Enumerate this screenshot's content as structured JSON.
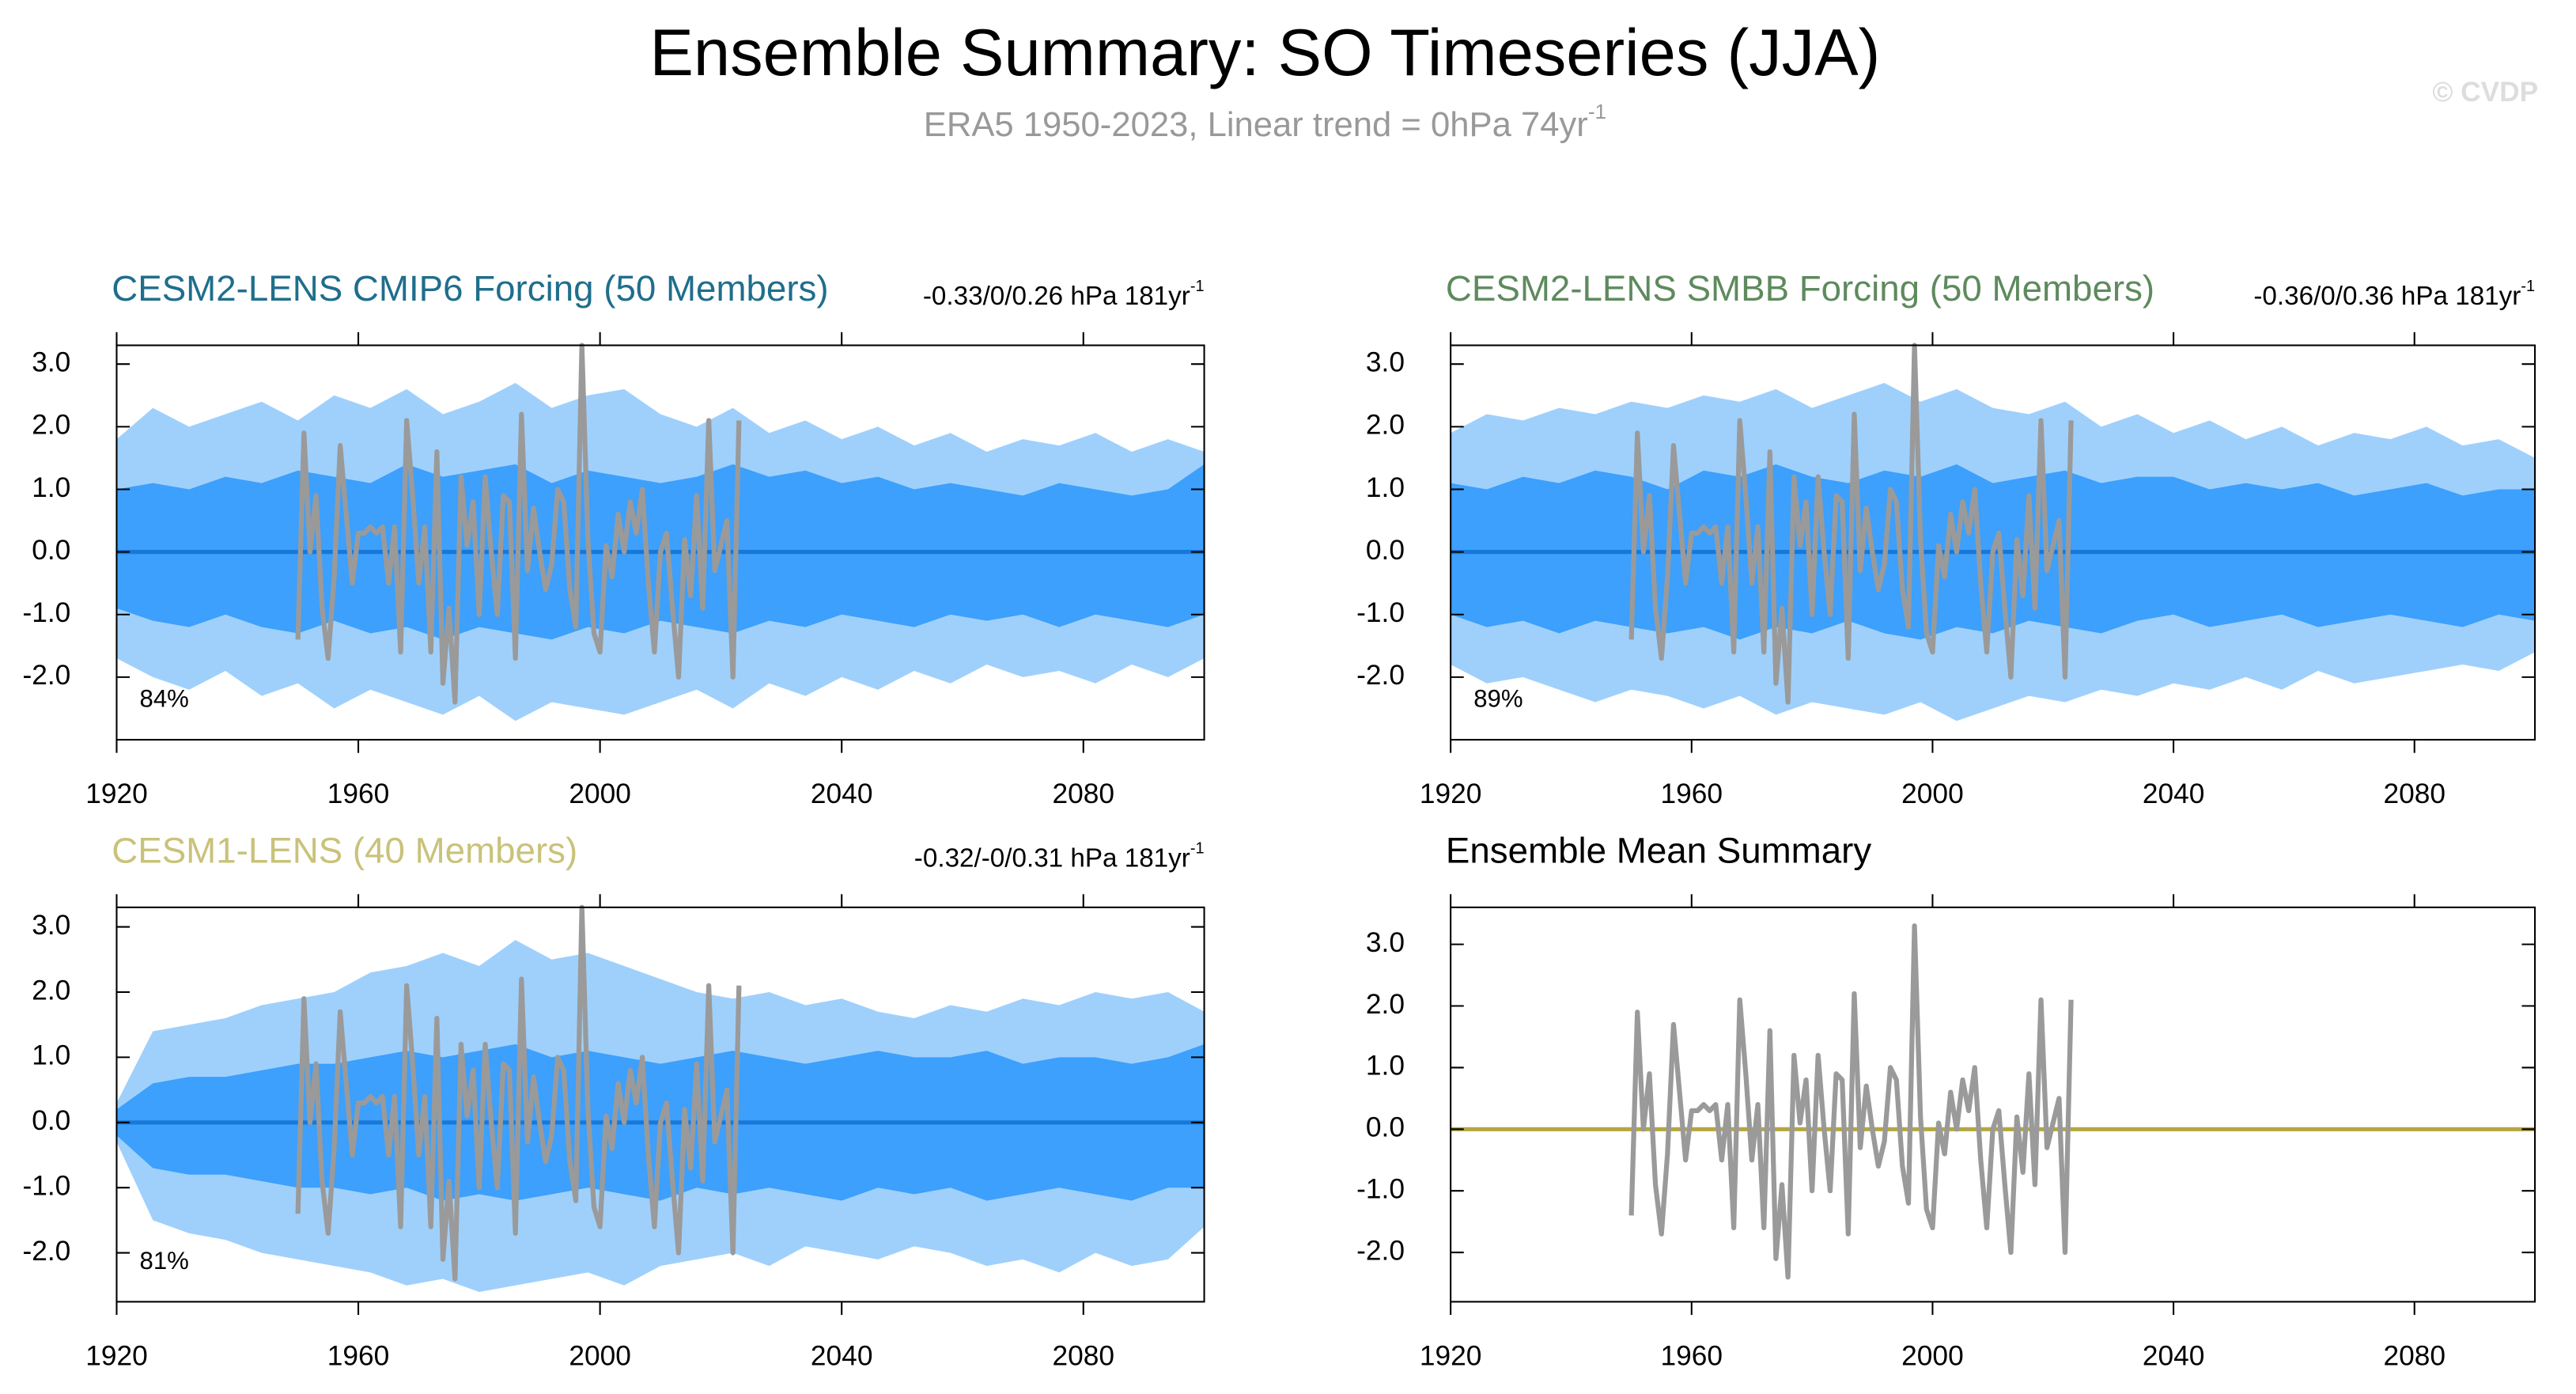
{
  "title": "Ensemble Summary: SO Timeseries (JJA)",
  "subtitle": "ERA5 1950-2023, Linear trend = 0hPa 74yr",
  "subtitle_sup": "-1",
  "watermark": "© CVDP",
  "observed": {
    "color": "#9a9a9a",
    "x": [
      1950,
      1951,
      1952,
      1953,
      1954,
      1955,
      1956,
      1957,
      1958,
      1959,
      1960,
      1961,
      1962,
      1963,
      1964,
      1965,
      1966,
      1967,
      1968,
      1969,
      1970,
      1971,
      1972,
      1973,
      1974,
      1975,
      1976,
      1977,
      1978,
      1979,
      1980,
      1981,
      1982,
      1983,
      1984,
      1985,
      1986,
      1987,
      1988,
      1989,
      1990,
      1991,
      1992,
      1993,
      1994,
      1995,
      1996,
      1997,
      1998,
      1999,
      2000,
      2001,
      2002,
      2003,
      2004,
      2005,
      2006,
      2007,
      2008,
      2009,
      2010,
      2011,
      2012,
      2013,
      2014,
      2015,
      2016,
      2017,
      2018,
      2019,
      2020,
      2021,
      2022,
      2023
    ],
    "values": [
      -1.4,
      1.9,
      0.0,
      0.9,
      -0.9,
      -1.7,
      -0.4,
      1.7,
      0.6,
      -0.5,
      0.3,
      0.3,
      0.4,
      0.3,
      0.4,
      -0.5,
      0.4,
      -1.6,
      2.1,
      0.9,
      -0.5,
      0.4,
      -1.6,
      1.6,
      -2.1,
      -0.9,
      -2.4,
      1.2,
      0.1,
      0.8,
      -1.0,
      1.2,
      0.0,
      -1.0,
      0.9,
      0.8,
      -1.7,
      2.2,
      -0.3,
      0.7,
      0.0,
      -0.6,
      -0.2,
      1.0,
      0.8,
      -0.6,
      -1.2,
      3.3,
      0.2,
      -1.3,
      -1.6,
      0.1,
      -0.4,
      0.6,
      0.0,
      0.8,
      0.3,
      1.0,
      -0.5,
      -1.6,
      0.0,
      0.3,
      -0.9,
      -2.0,
      0.2,
      -0.7,
      0.9,
      -0.9,
      2.1,
      -0.3,
      0.1,
      0.5,
      -2.0,
      2.1
    ]
  },
  "chart_data": [
    {
      "type": "band",
      "title": "CESM2-LENS CMIP6 Forcing (50 Members)",
      "title_color": "#1f6e8c",
      "trend_label": "-0.33/0/0.26 hPa 181yr",
      "trend_label_sup": "-1",
      "annotation": "84%",
      "xlim": [
        1920,
        2100
      ],
      "ylim": [
        -3,
        3.3
      ],
      "xticks": [
        1920,
        1960,
        2000,
        2040,
        2080
      ],
      "yticks": [
        {
          "value": -2,
          "label": "-2.0"
        },
        {
          "value": -1,
          "label": "-1.0"
        },
        {
          "value": 0,
          "label": "0.0"
        },
        {
          "value": 1,
          "label": "1.0"
        },
        {
          "value": 2,
          "label": "2.0"
        },
        {
          "value": 3,
          "label": "3.0"
        }
      ],
      "x": [
        1920,
        1926,
        1932,
        1938,
        1944,
        1950,
        1956,
        1962,
        1968,
        1974,
        1980,
        1986,
        1992,
        1998,
        2004,
        2010,
        2016,
        2022,
        2028,
        2034,
        2040,
        2046,
        2052,
        2058,
        2064,
        2070,
        2076,
        2082,
        2088,
        2094,
        2100
      ],
      "bands": [
        {
          "color": "#9fd0fc",
          "upper": [
            1.8,
            2.3,
            2.0,
            2.2,
            2.4,
            2.1,
            2.5,
            2.3,
            2.6,
            2.2,
            2.4,
            2.7,
            2.3,
            2.5,
            2.6,
            2.2,
            2.0,
            2.3,
            1.9,
            2.1,
            1.8,
            2.0,
            1.7,
            1.9,
            1.6,
            1.8,
            1.7,
            1.9,
            1.6,
            1.8,
            1.6
          ],
          "lower": [
            -1.7,
            -2.0,
            -2.2,
            -1.9,
            -2.3,
            -2.1,
            -2.5,
            -2.2,
            -2.4,
            -2.6,
            -2.3,
            -2.7,
            -2.4,
            -2.5,
            -2.6,
            -2.4,
            -2.2,
            -2.5,
            -2.1,
            -2.3,
            -2.0,
            -2.2,
            -1.9,
            -2.1,
            -1.8,
            -2.0,
            -1.9,
            -2.1,
            -1.8,
            -2.0,
            -1.7
          ]
        },
        {
          "color": "#3ca0fc",
          "upper": [
            1.0,
            1.1,
            1.0,
            1.2,
            1.1,
            1.3,
            1.2,
            1.1,
            1.4,
            1.2,
            1.3,
            1.4,
            1.1,
            1.3,
            1.2,
            1.1,
            1.2,
            1.4,
            1.2,
            1.3,
            1.1,
            1.2,
            1.0,
            1.1,
            1.0,
            0.9,
            1.1,
            1.0,
            0.9,
            1.0,
            1.4
          ],
          "lower": [
            -0.9,
            -1.1,
            -1.2,
            -1.0,
            -1.2,
            -1.3,
            -1.1,
            -1.3,
            -1.2,
            -1.4,
            -1.2,
            -1.3,
            -1.4,
            -1.2,
            -1.3,
            -1.1,
            -1.2,
            -1.3,
            -1.1,
            -1.2,
            -1.0,
            -1.1,
            -1.2,
            -1.0,
            -1.1,
            -1.0,
            -1.2,
            -1.0,
            -1.1,
            -1.2,
            -1.0
          ]
        }
      ],
      "lines": [
        {
          "color": "#1878d8",
          "x": [
            1920,
            2100
          ],
          "values": [
            0,
            0
          ]
        }
      ]
    },
    {
      "type": "band",
      "title": "CESM2-LENS SMBB Forcing (50 Members)",
      "title_color": "#5e8a5e",
      "trend_label": "-0.36/0/0.36 hPa 181yr",
      "trend_label_sup": "-1",
      "annotation": "89%",
      "xlim": [
        1920,
        2100
      ],
      "ylim": [
        -3,
        3.3
      ],
      "xticks": [
        1920,
        1960,
        2000,
        2040,
        2080
      ],
      "yticks": [
        {
          "value": -2,
          "label": "-2.0"
        },
        {
          "value": -1,
          "label": "-1.0"
        },
        {
          "value": 0,
          "label": "0.0"
        },
        {
          "value": 1,
          "label": "1.0"
        },
        {
          "value": 2,
          "label": "2.0"
        },
        {
          "value": 3,
          "label": "3.0"
        }
      ],
      "x": [
        1920,
        1926,
        1932,
        1938,
        1944,
        1950,
        1956,
        1962,
        1968,
        1974,
        1980,
        1986,
        1992,
        1998,
        2004,
        2010,
        2016,
        2022,
        2028,
        2034,
        2040,
        2046,
        2052,
        2058,
        2064,
        2070,
        2076,
        2082,
        2088,
        2094,
        2100
      ],
      "bands": [
        {
          "color": "#9fd0fc",
          "upper": [
            1.9,
            2.2,
            2.1,
            2.3,
            2.2,
            2.4,
            2.3,
            2.5,
            2.4,
            2.6,
            2.3,
            2.5,
            2.7,
            2.4,
            2.6,
            2.3,
            2.2,
            2.4,
            2.0,
            2.2,
            1.9,
            2.1,
            1.8,
            2.0,
            1.7,
            1.9,
            1.8,
            2.0,
            1.7,
            1.8,
            1.5
          ],
          "lower": [
            -1.8,
            -2.1,
            -2.0,
            -2.2,
            -2.4,
            -2.2,
            -2.3,
            -2.5,
            -2.3,
            -2.6,
            -2.4,
            -2.5,
            -2.6,
            -2.4,
            -2.7,
            -2.5,
            -2.3,
            -2.4,
            -2.2,
            -2.3,
            -2.1,
            -2.2,
            -2.0,
            -2.2,
            -1.9,
            -2.1,
            -2.0,
            -1.9,
            -1.8,
            -1.9,
            -1.6
          ]
        },
        {
          "color": "#3ca0fc",
          "upper": [
            1.1,
            1.0,
            1.2,
            1.1,
            1.3,
            1.2,
            1.0,
            1.3,
            1.2,
            1.4,
            1.2,
            1.1,
            1.3,
            1.2,
            1.4,
            1.1,
            1.2,
            1.3,
            1.1,
            1.2,
            1.2,
            1.0,
            1.1,
            1.0,
            1.1,
            0.9,
            1.0,
            1.1,
            0.9,
            1.0,
            1.0
          ],
          "lower": [
            -1.0,
            -1.2,
            -1.1,
            -1.3,
            -1.1,
            -1.2,
            -1.3,
            -1.2,
            -1.4,
            -1.2,
            -1.3,
            -1.1,
            -1.3,
            -1.4,
            -1.2,
            -1.3,
            -1.1,
            -1.2,
            -1.3,
            -1.1,
            -1.0,
            -1.2,
            -1.1,
            -1.0,
            -1.2,
            -1.1,
            -1.0,
            -1.1,
            -1.2,
            -1.0,
            -1.1
          ]
        }
      ],
      "lines": [
        {
          "color": "#1878d8",
          "x": [
            1920,
            2100
          ],
          "values": [
            0,
            0
          ]
        }
      ]
    },
    {
      "type": "band",
      "title": "CESM1-LENS (40 Members)",
      "title_color": "#c9c27a",
      "trend_label": "-0.32/-0/0.31 hPa 181yr",
      "trend_label_sup": "-1",
      "annotation": "81%",
      "xlim": [
        1920,
        2100
      ],
      "ylim": [
        -2.75,
        3.3
      ],
      "xticks": [
        1920,
        1960,
        2000,
        2040,
        2080
      ],
      "yticks": [
        {
          "value": -2,
          "label": "-2.0"
        },
        {
          "value": -1,
          "label": "-1.0"
        },
        {
          "value": 0,
          "label": "0.0"
        },
        {
          "value": 1,
          "label": "1.0"
        },
        {
          "value": 2,
          "label": "2.0"
        },
        {
          "value": 3,
          "label": "3.0"
        }
      ],
      "x": [
        1920,
        1926,
        1932,
        1938,
        1944,
        1950,
        1956,
        1962,
        1968,
        1974,
        1980,
        1986,
        1992,
        1998,
        2004,
        2010,
        2016,
        2022,
        2028,
        2034,
        2040,
        2046,
        2052,
        2058,
        2064,
        2070,
        2076,
        2082,
        2088,
        2094,
        2100
      ],
      "bands": [
        {
          "color": "#9fd0fc",
          "upper": [
            0.3,
            1.4,
            1.5,
            1.6,
            1.8,
            1.9,
            2.0,
            2.3,
            2.4,
            2.6,
            2.4,
            2.8,
            2.5,
            2.6,
            2.4,
            2.2,
            2.0,
            1.9,
            2.0,
            1.8,
            1.9,
            1.7,
            1.6,
            1.8,
            1.7,
            1.9,
            1.8,
            2.0,
            1.9,
            2.0,
            1.7
          ],
          "lower": [
            -0.3,
            -1.5,
            -1.7,
            -1.8,
            -2.0,
            -2.1,
            -2.2,
            -2.3,
            -2.5,
            -2.4,
            -2.6,
            -2.5,
            -2.4,
            -2.3,
            -2.5,
            -2.2,
            -2.1,
            -2.0,
            -2.2,
            -1.9,
            -2.0,
            -2.1,
            -1.9,
            -2.0,
            -2.2,
            -2.1,
            -2.3,
            -2.0,
            -2.2,
            -2.1,
            -1.6
          ]
        },
        {
          "color": "#3ca0fc",
          "upper": [
            0.2,
            0.6,
            0.7,
            0.7,
            0.8,
            0.9,
            0.9,
            1.0,
            1.1,
            1.0,
            1.1,
            1.2,
            1.0,
            1.1,
            1.0,
            0.9,
            1.0,
            1.1,
            1.0,
            0.9,
            1.0,
            1.1,
            1.0,
            1.0,
            1.1,
            0.9,
            1.0,
            1.0,
            0.9,
            1.0,
            1.2
          ],
          "lower": [
            -0.2,
            -0.7,
            -0.8,
            -0.8,
            -0.9,
            -1.0,
            -1.0,
            -1.1,
            -1.0,
            -1.2,
            -1.1,
            -1.2,
            -1.1,
            -1.0,
            -1.1,
            -1.2,
            -1.0,
            -1.1,
            -1.0,
            -1.1,
            -1.2,
            -1.0,
            -1.1,
            -1.0,
            -1.2,
            -1.1,
            -1.0,
            -1.1,
            -1.2,
            -1.0,
            -1.0
          ]
        }
      ],
      "lines": [
        {
          "color": "#1878d8",
          "x": [
            1920,
            2100
          ],
          "values": [
            0,
            0
          ]
        }
      ]
    },
    {
      "type": "line",
      "title": "Ensemble Mean Summary",
      "title_color": "#000000",
      "xlim": [
        1920,
        2100
      ],
      "ylim": [
        -2.8,
        3.6
      ],
      "xticks": [
        1920,
        1960,
        2000,
        2040,
        2080
      ],
      "yticks": [
        {
          "value": -2,
          "label": "-2.0"
        },
        {
          "value": -1,
          "label": "-1.0"
        },
        {
          "value": 0,
          "label": "0.0"
        },
        {
          "value": 1,
          "label": "1.0"
        },
        {
          "value": 2,
          "label": "2.0"
        },
        {
          "value": 3,
          "label": "3.0"
        }
      ],
      "lines": [
        {
          "color": "#b5a642",
          "x": [
            1920,
            2100
          ],
          "values": [
            0,
            0
          ]
        }
      ]
    }
  ]
}
